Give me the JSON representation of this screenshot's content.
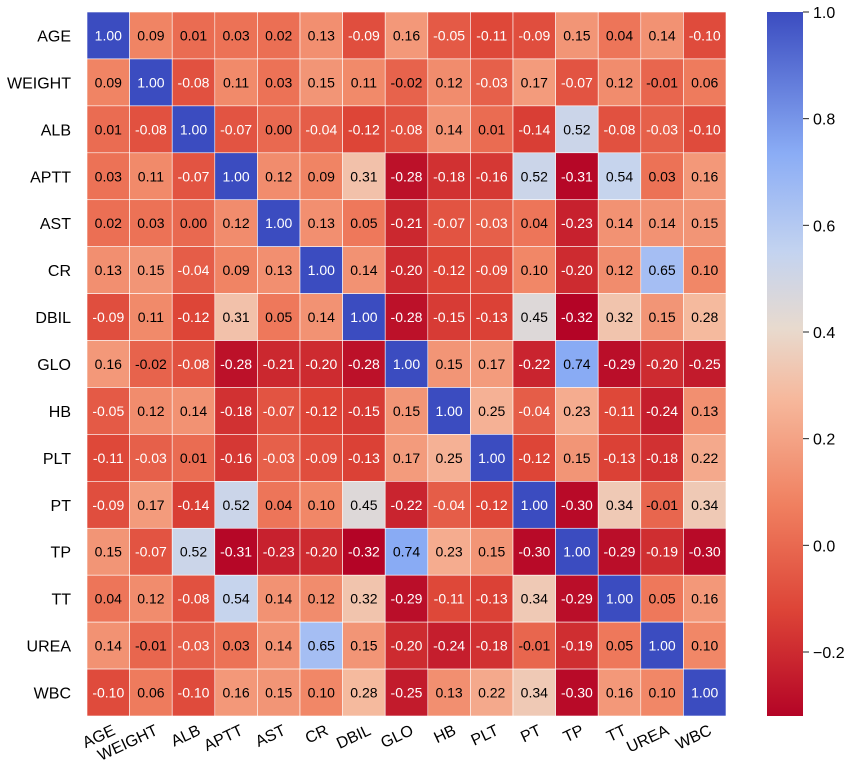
{
  "chart_data": {
    "type": "heatmap",
    "title": "",
    "xlabel": "",
    "ylabel": "",
    "labels": [
      "AGE",
      "WEIGHT",
      "ALB",
      "APTT",
      "AST",
      "CR",
      "DBIL",
      "GLO",
      "HB",
      "PLT",
      "PT",
      "TP",
      "TT",
      "UREA",
      "WBC"
    ],
    "matrix": [
      [
        1.0,
        0.09,
        0.01,
        0.03,
        0.02,
        0.13,
        -0.09,
        0.16,
        -0.05,
        -0.11,
        -0.09,
        0.15,
        0.04,
        0.14,
        -0.1
      ],
      [
        0.09,
        1.0,
        -0.08,
        0.11,
        0.03,
        0.15,
        0.11,
        -0.02,
        0.12,
        -0.03,
        0.17,
        -0.07,
        0.12,
        -0.01,
        0.06
      ],
      [
        0.01,
        -0.08,
        1.0,
        -0.07,
        0.0,
        -0.04,
        -0.12,
        -0.08,
        0.14,
        0.01,
        -0.14,
        0.52,
        -0.08,
        -0.03,
        -0.1
      ],
      [
        0.03,
        0.11,
        -0.07,
        1.0,
        0.12,
        0.09,
        0.31,
        -0.28,
        -0.18,
        -0.16,
        0.52,
        -0.31,
        0.54,
        0.03,
        0.16
      ],
      [
        0.02,
        0.03,
        0.0,
        0.12,
        1.0,
        0.13,
        0.05,
        -0.21,
        -0.07,
        -0.03,
        0.04,
        -0.23,
        0.14,
        0.14,
        0.15
      ],
      [
        0.13,
        0.15,
        -0.04,
        0.09,
        0.13,
        1.0,
        0.14,
        -0.2,
        -0.12,
        -0.09,
        0.1,
        -0.2,
        0.12,
        0.65,
        0.1
      ],
      [
        -0.09,
        0.11,
        -0.12,
        0.31,
        0.05,
        0.14,
        1.0,
        -0.28,
        -0.15,
        -0.13,
        0.45,
        -0.32,
        0.32,
        0.15,
        0.28
      ],
      [
        0.16,
        -0.02,
        -0.08,
        -0.28,
        -0.21,
        -0.2,
        -0.28,
        1.0,
        0.15,
        0.17,
        -0.22,
        0.74,
        -0.29,
        -0.2,
        -0.25
      ],
      [
        -0.05,
        0.12,
        0.14,
        -0.18,
        -0.07,
        -0.12,
        -0.15,
        0.15,
        1.0,
        0.25,
        -0.04,
        0.23,
        -0.11,
        -0.24,
        0.13
      ],
      [
        -0.11,
        -0.03,
        0.01,
        -0.16,
        -0.03,
        -0.09,
        -0.13,
        0.17,
        0.25,
        1.0,
        -0.12,
        0.15,
        -0.13,
        -0.18,
        0.22
      ],
      [
        -0.09,
        0.17,
        -0.14,
        0.52,
        0.04,
        0.1,
        0.45,
        -0.22,
        -0.04,
        -0.12,
        1.0,
        -0.3,
        0.34,
        -0.01,
        0.34
      ],
      [
        0.15,
        -0.07,
        0.52,
        -0.31,
        -0.23,
        -0.2,
        -0.32,
        0.74,
        0.23,
        0.15,
        -0.3,
        1.0,
        -0.29,
        -0.19,
        -0.3
      ],
      [
        0.04,
        0.12,
        -0.08,
        0.54,
        0.14,
        0.12,
        0.32,
        -0.29,
        -0.11,
        -0.13,
        0.34,
        -0.29,
        1.0,
        0.05,
        0.16
      ],
      [
        0.14,
        -0.01,
        -0.03,
        0.03,
        0.14,
        0.65,
        0.15,
        -0.2,
        -0.24,
        -0.18,
        -0.01,
        -0.19,
        0.05,
        1.0,
        0.1
      ],
      [
        -0.1,
        0.06,
        -0.1,
        0.16,
        0.15,
        0.1,
        0.28,
        -0.25,
        0.13,
        0.22,
        0.34,
        -0.3,
        0.16,
        0.1,
        1.0
      ]
    ],
    "colorbar": {
      "min": -0.32,
      "max": 1.0,
      "ticks": [
        1.0,
        0.8,
        0.6,
        0.4,
        0.2,
        0.0,
        -0.2
      ],
      "tick_labels": [
        "1.0",
        "0.8",
        "0.6",
        "0.4",
        "0.2",
        "0.0",
        "−0.2"
      ],
      "colormap": "coolwarm_r",
      "colors": {
        "low": "#b40426",
        "mid": "#dddcdc",
        "high": "#3b4cc0"
      }
    }
  }
}
